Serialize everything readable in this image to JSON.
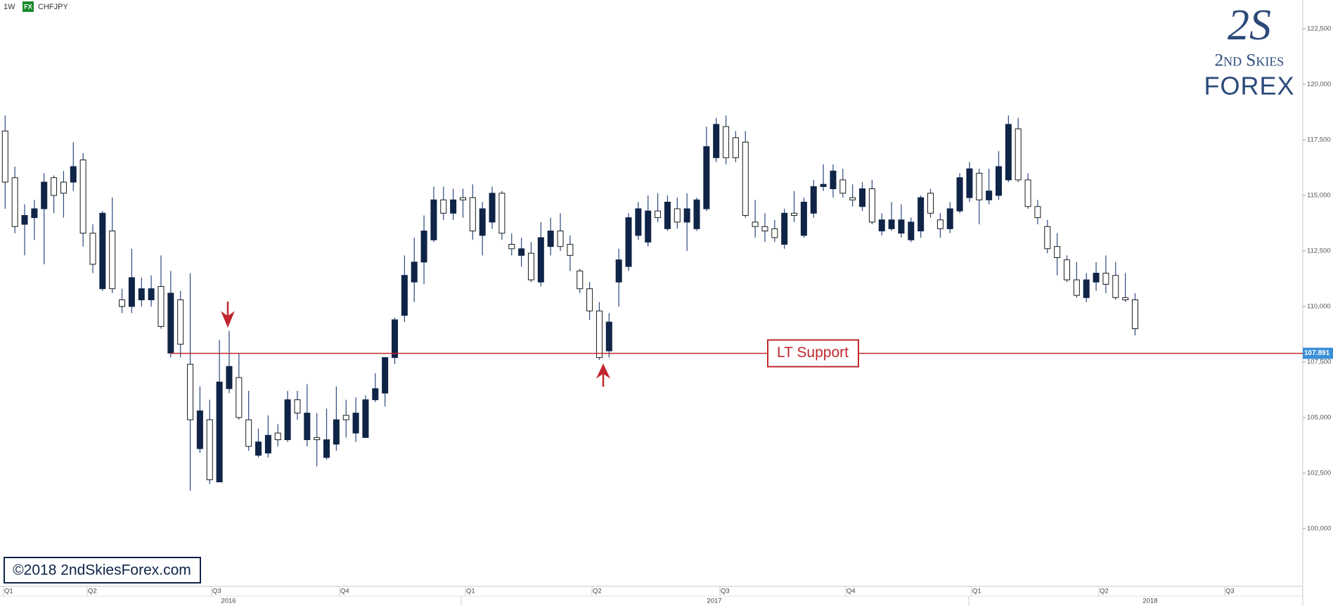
{
  "header": {
    "interval": "1W",
    "market": "FX",
    "symbol": "CHFJPY"
  },
  "logo": {
    "monogram": "2S",
    "brand": "2nd Skies",
    "brand_sub": "FOREX"
  },
  "copyright": "©2018 2ndSkiesForex.com",
  "chart_data": {
    "type": "candlestick",
    "up_color": "#0f2447",
    "down_color": "#ffffff",
    "open": [
      117900,
      115800,
      113700,
      114000,
      114400,
      115800,
      115600,
      115600,
      116600,
      113300,
      110800,
      113400,
      110300,
      110000,
      110300,
      110300,
      110900,
      107900,
      110300,
      107400,
      103600,
      104900,
      102100,
      106300,
      106800,
      104900,
      103300,
      103400,
      104300,
      104000,
      105800,
      104000,
      104100,
      103200,
      103800,
      105100,
      104300,
      104100,
      105800,
      106100,
      107700,
      109600,
      111100,
      112000,
      113000,
      114800,
      114200,
      114900,
      114900,
      113200,
      113800,
      115100,
      112800,
      112300,
      112400,
      111100,
      112700,
      113400,
      112800,
      111600,
      110800,
      109800,
      108000,
      111100,
      111800,
      113200,
      112900,
      114300,
      113500,
      114400,
      113800,
      113500,
      114400,
      116700,
      118100,
      117600,
      117400,
      113800,
      113600,
      113500,
      112800,
      114200,
      113200,
      114200,
      115400,
      115300,
      115700,
      114900,
      114500,
      115300,
      113400,
      113500,
      113300,
      113000,
      113400,
      115100,
      113900,
      113500,
      114300,
      114900,
      116000,
      114800,
      115000,
      115700,
      118000,
      115700,
      114500,
      113600,
      112700,
      112100,
      111200,
      110400,
      111100,
      111500,
      111400,
      110400,
      110300
    ],
    "high": [
      118600,
      116300,
      114600,
      114800,
      116000,
      115900,
      116100,
      117400,
      116900,
      113700,
      114300,
      114900,
      110800,
      112600,
      111300,
      111400,
      112300,
      111600,
      110700,
      111500,
      106400,
      105800,
      108500,
      108900,
      107900,
      106200,
      104500,
      105100,
      104700,
      106200,
      106200,
      106500,
      105200,
      105400,
      106400,
      105800,
      105900,
      106000,
      107000,
      107700,
      109500,
      112300,
      113100,
      114100,
      115400,
      115400,
      115300,
      115300,
      115500,
      114700,
      115400,
      115200,
      113300,
      113100,
      112900,
      113800,
      114000,
      114200,
      113200,
      111700,
      111100,
      110200,
      109700,
      112600,
      114200,
      114700,
      115000,
      115100,
      115000,
      114900,
      115100,
      114900,
      118100,
      118500,
      118600,
      117900,
      117900,
      114800,
      114200,
      113900,
      114400,
      115200,
      114900,
      115700,
      116400,
      116400,
      116200,
      115500,
      115600,
      115700,
      114200,
      114700,
      114600,
      114000,
      115000,
      115300,
      114200,
      114700,
      116000,
      116500,
      116200,
      116200,
      117000,
      118600,
      118500,
      116000,
      114800,
      113900,
      113300,
      112300,
      112000,
      111500,
      112000,
      112300,
      112000,
      111500,
      110600
    ],
    "low": [
      114400,
      113300,
      112300,
      113000,
      111900,
      114200,
      114000,
      115200,
      112700,
      111500,
      110700,
      110600,
      109700,
      109700,
      110000,
      110000,
      109000,
      107700,
      107700,
      101700,
      103400,
      102000,
      102100,
      106100,
      104900,
      103500,
      103200,
      103200,
      103700,
      103900,
      104900,
      103700,
      102800,
      103100,
      103500,
      104100,
      103900,
      104100,
      105700,
      105500,
      107400,
      109300,
      110200,
      111000,
      112900,
      113900,
      113900,
      114000,
      113000,
      112300,
      113500,
      113000,
      112300,
      111800,
      111100,
      110900,
      112300,
      112500,
      111600,
      110600,
      109400,
      107600,
      107700,
      110000,
      111600,
      113000,
      112700,
      113800,
      113400,
      113500,
      112500,
      113400,
      114300,
      116500,
      116400,
      116500,
      114000,
      113100,
      112900,
      112900,
      112600,
      113800,
      113100,
      114000,
      115200,
      114900,
      114900,
      114500,
      114300,
      113700,
      113200,
      113400,
      113100,
      112900,
      113100,
      114000,
      113100,
      113300,
      114200,
      114700,
      113700,
      114600,
      114800,
      115600,
      115600,
      114400,
      113700,
      112400,
      111400,
      111100,
      110400,
      110200,
      110700,
      110600,
      110300,
      110200,
      108700
    ],
    "close": [
      115600,
      113600,
      114100,
      114400,
      115600,
      115000,
      115100,
      116300,
      113300,
      111900,
      114200,
      110800,
      110000,
      111300,
      110800,
      110800,
      109100,
      110600,
      108300,
      104900,
      105300,
      102200,
      106600,
      107300,
      105000,
      103700,
      103900,
      104200,
      104000,
      105800,
      105200,
      105200,
      104000,
      104000,
      104900,
      104900,
      105200,
      105800,
      106300,
      107700,
      109400,
      111400,
      112000,
      113400,
      114800,
      114200,
      114800,
      114800,
      113400,
      114400,
      115100,
      113300,
      112600,
      112600,
      111200,
      113100,
      113400,
      112700,
      112300,
      110800,
      109800,
      107700,
      109300,
      112100,
      114000,
      114400,
      114300,
      114000,
      114700,
      113800,
      114400,
      114800,
      117200,
      118200,
      116700,
      116700,
      114100,
      113600,
      113400,
      113100,
      114200,
      114100,
      114700,
      115400,
      115500,
      116100,
      115100,
      114800,
      115300,
      113800,
      113900,
      113900,
      113900,
      113800,
      114900,
      114200,
      113500,
      114400,
      115800,
      116200,
      114800,
      115200,
      116300,
      118200,
      115700,
      114500,
      114000,
      112600,
      112200,
      111200,
      110500,
      111200,
      111500,
      111000,
      110400,
      110300,
      109000
    ],
    "ylim": [
      97400,
      123800
    ],
    "yticks": [
      {
        "value": 100000,
        "label": "100,000"
      },
      {
        "value": 102500,
        "label": "102,500"
      },
      {
        "value": 105000,
        "label": "105,000"
      },
      {
        "value": 107500,
        "label": "107,500"
      },
      {
        "value": 110000,
        "label": "110,000"
      },
      {
        "value": 112500,
        "label": "112,500"
      },
      {
        "value": 115000,
        "label": "115,000"
      },
      {
        "value": 117500,
        "label": "117,500"
      },
      {
        "value": 120000,
        "label": "120,000"
      },
      {
        "value": 122500,
        "label": "122,500"
      }
    ],
    "quarter_labels": [
      "Q1",
      "Q2",
      "Q3",
      "Q4",
      "Q1",
      "Q2",
      "Q3",
      "Q4",
      "Q1",
      "Q2",
      "Q3"
    ],
    "year_labels": [
      "2016",
      "2017",
      "2018"
    ],
    "support": {
      "value": 107891,
      "label": "107.891",
      "annotation": "LT Support",
      "color": "#c0262d"
    }
  }
}
